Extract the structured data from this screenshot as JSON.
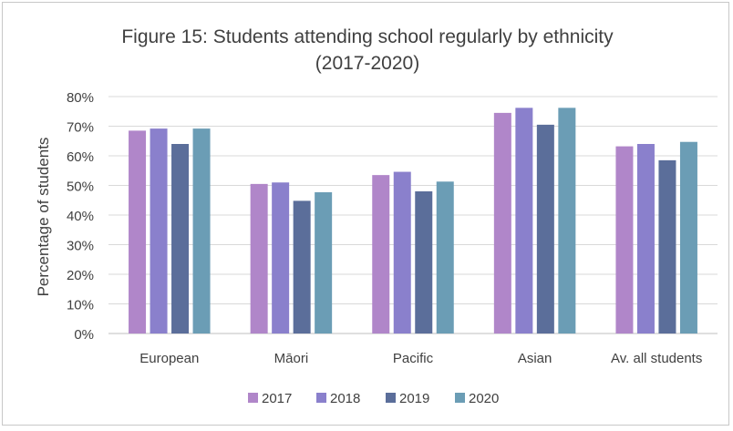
{
  "chart_data": {
    "type": "bar",
    "title_line1": "Figure 15: Students attending school regularly by ethnicity",
    "title_line2": "(2017-2020)",
    "xlabel": "",
    "ylabel": "Percentage of students",
    "ylim": [
      0,
      80
    ],
    "yticks": [
      0,
      10,
      20,
      30,
      40,
      50,
      60,
      70,
      80
    ],
    "ytick_labels": [
      "0%",
      "10%",
      "20%",
      "30%",
      "40%",
      "50%",
      "60%",
      "70%",
      "80%"
    ],
    "grid": true,
    "legend_position": "bottom",
    "categories": [
      "European",
      "Māori",
      "Pacific",
      "Asian",
      "Av. all students"
    ],
    "series": [
      {
        "name": "2017",
        "color": "#b086c9",
        "values": [
          68.5,
          50.5,
          53.5,
          74.5,
          63.2
        ]
      },
      {
        "name": "2018",
        "color": "#8a80cc",
        "values": [
          69.2,
          51.0,
          54.6,
          76.2,
          64.0
        ]
      },
      {
        "name": "2019",
        "color": "#5b6e9a",
        "values": [
          64.0,
          44.8,
          48.0,
          70.5,
          58.5
        ]
      },
      {
        "name": "2020",
        "color": "#6b9db5",
        "values": [
          69.2,
          47.7,
          51.3,
          76.2,
          64.7
        ]
      }
    ]
  }
}
